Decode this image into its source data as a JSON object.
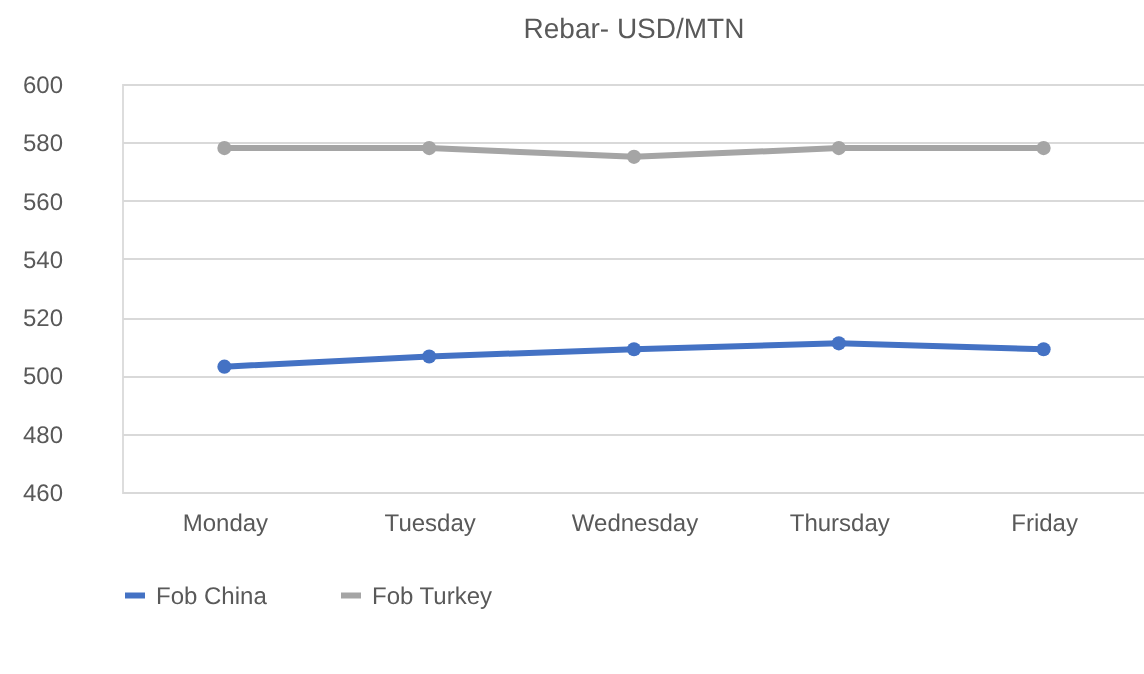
{
  "chart_data": {
    "type": "line",
    "title": "Rebar- USD/MTN",
    "categories": [
      "Monday",
      "Tuesday",
      "Wednesday",
      "Thursday",
      "Friday"
    ],
    "series": [
      {
        "name": "Fob China",
        "color": "#4472c4",
        "values": [
          503,
          506.5,
          509,
          511,
          509
        ]
      },
      {
        "name": "Fob Turkey",
        "color": "#a5a5a5",
        "values": [
          578,
          578,
          575,
          578,
          578
        ]
      }
    ],
    "ylim": [
      460,
      600
    ],
    "yticks": [
      460,
      480,
      500,
      520,
      540,
      560,
      580,
      600
    ],
    "grid": "y",
    "legend": "bottom",
    "marker": "circle",
    "line_style": "solid"
  }
}
